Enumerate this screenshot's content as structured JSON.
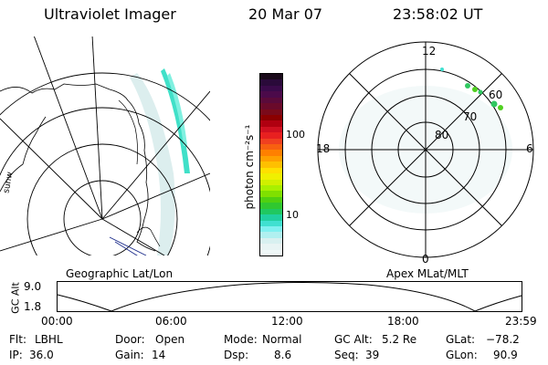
{
  "header": {
    "title": "Ultraviolet Imager",
    "date": "20 Mar 07",
    "time": "23:58:02 UT"
  },
  "colorbar": {
    "unit_label": "photon cm⁻²s⁻¹",
    "ticks": [
      "100",
      "10"
    ],
    "colors": [
      "#1a0a1a",
      "#2a0a3a",
      "#3a0a4a",
      "#4b0a4a",
      "#5a0a3a",
      "#6a0a2a",
      "#7a0a1a",
      "#8b0000",
      "#b00010",
      "#d01020",
      "#e82020",
      "#f04020",
      "#f86010",
      "#ff8000",
      "#ffa000",
      "#ffc000",
      "#ffe000",
      "#f0f000",
      "#d0f000",
      "#a8f000",
      "#80e000",
      "#50d010",
      "#30c830",
      "#20c860",
      "#20d0a0",
      "#40e0d0",
      "#80f0f0",
      "#b0f0f0",
      "#d8f0f0",
      "#e8f4f4",
      "#f0f8f8"
    ]
  },
  "polar_plot": {
    "mlt_labels": {
      "top": "12",
      "left": "18",
      "right": "6",
      "bottom": "0"
    },
    "lat_labels": [
      "60",
      "70",
      "80"
    ]
  },
  "captions": {
    "left": "Geographic Lat/Lon",
    "right": "Apex MLat/MLT"
  },
  "altitude_plot": {
    "axis_label": "GC Alt",
    "ticks": [
      "9.0",
      "1.8"
    ],
    "time_labels": [
      "00:00",
      "06:00",
      "12:00",
      "18:00",
      "23:59"
    ]
  },
  "info": {
    "row1": [
      {
        "key": "Flt:",
        "value": "LBHL"
      },
      {
        "key": "Door:",
        "value": "Open"
      },
      {
        "key": "Mode:",
        "value": "Normal"
      },
      {
        "key": "GC Alt:",
        "value": "5.2 Re"
      },
      {
        "key": "GLat:",
        "value": "−78.2"
      }
    ],
    "row2": [
      {
        "key": "IP:",
        "value": "36.0"
      },
      {
        "key": "Gain:",
        "value": "14"
      },
      {
        "key": "Dsp:",
        "value": "8.6"
      },
      {
        "key": "Seq:",
        "value": "39"
      },
      {
        "key": "GLon:",
        "value": "90.9"
      }
    ]
  },
  "map_text": {
    "coast_label": "sunw"
  }
}
